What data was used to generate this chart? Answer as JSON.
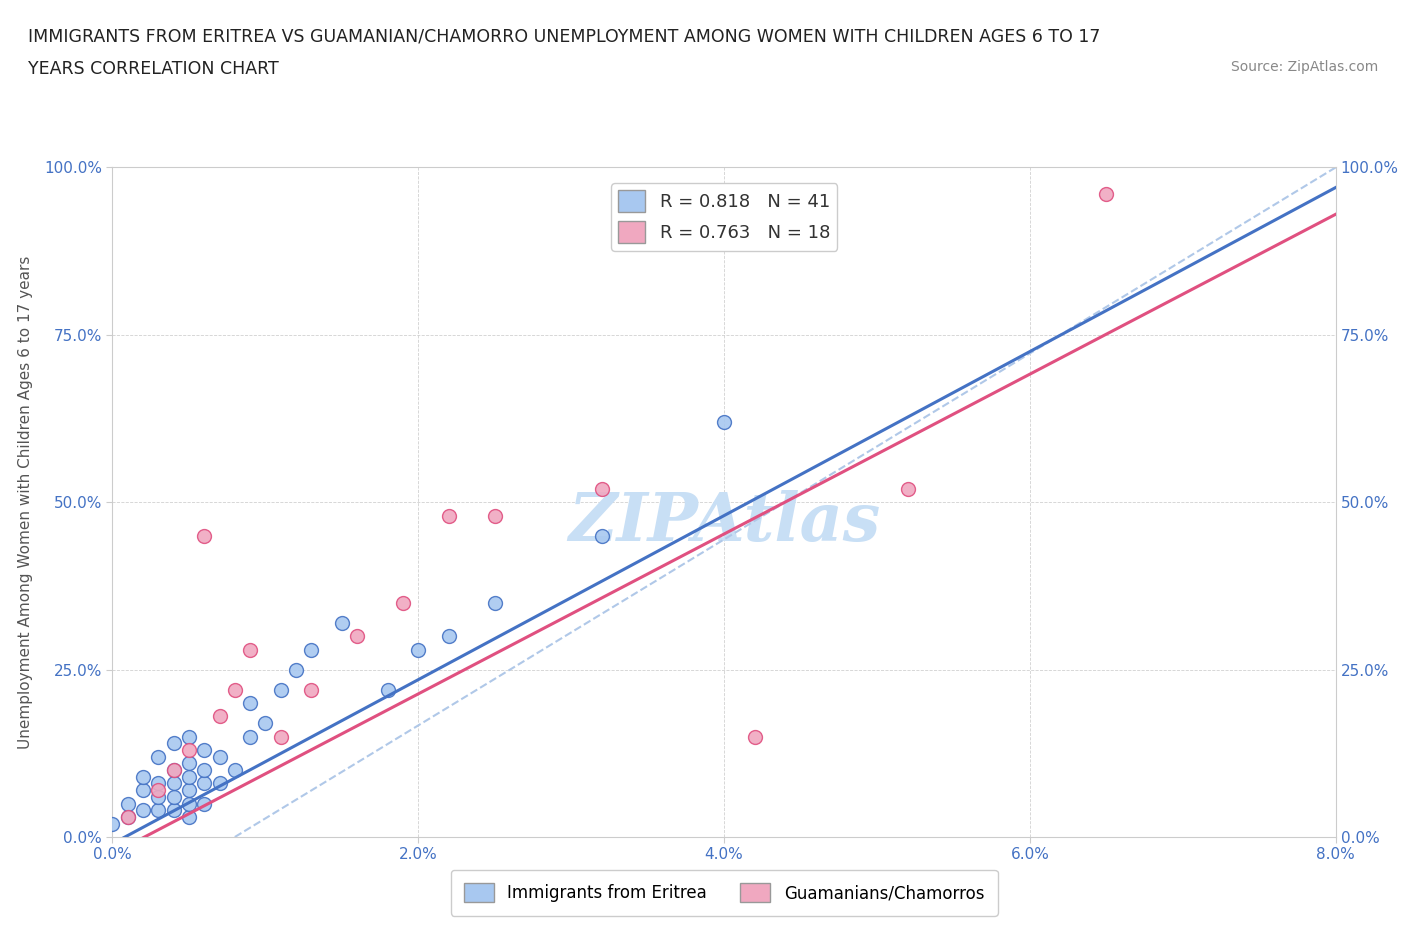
{
  "title_line1": "IMMIGRANTS FROM ERITREA VS GUAMANIAN/CHAMORRO UNEMPLOYMENT AMONG WOMEN WITH CHILDREN AGES 6 TO 17",
  "title_line2": "YEARS CORRELATION CHART",
  "source_text": "Source: ZipAtlas.com",
  "ylabel": "Unemployment Among Women with Children Ages 6 to 17 years",
  "xlim": [
    0.0,
    0.08
  ],
  "ylim": [
    0.0,
    1.0
  ],
  "xtick_labels": [
    "0.0%",
    "2.0%",
    "4.0%",
    "6.0%",
    "8.0%"
  ],
  "xtick_vals": [
    0.0,
    0.02,
    0.04,
    0.06,
    0.08
  ],
  "ytick_labels": [
    "0.0%",
    "25.0%",
    "50.0%",
    "75.0%",
    "100.0%"
  ],
  "ytick_vals": [
    0.0,
    0.25,
    0.5,
    0.75,
    1.0
  ],
  "r_eritrea": 0.818,
  "n_eritrea": 41,
  "r_guam": 0.763,
  "n_guam": 18,
  "color_eritrea": "#a8c8f0",
  "color_guam": "#f0a8c0",
  "color_eritrea_line": "#4472c4",
  "color_guam_line": "#e05080",
  "color_dashed": "#b0c8e8",
  "watermark": "ZIPAtlas",
  "watermark_color": "#c8dff5",
  "legend_label_eritrea": "Immigrants from Eritrea",
  "legend_label_guam": "Guamanians/Chamorros",
  "eritrea_trendline": [
    0.0,
    -0.01,
    0.08,
    0.97
  ],
  "guam_trendline": [
    0.0,
    -0.025,
    0.08,
    0.93
  ],
  "dashed_trendline": [
    0.008,
    0.0,
    0.08,
    1.0
  ],
  "eritrea_x": [
    0.0,
    0.001,
    0.001,
    0.002,
    0.002,
    0.002,
    0.003,
    0.003,
    0.003,
    0.003,
    0.004,
    0.004,
    0.004,
    0.004,
    0.004,
    0.005,
    0.005,
    0.005,
    0.005,
    0.005,
    0.005,
    0.006,
    0.006,
    0.006,
    0.006,
    0.007,
    0.007,
    0.008,
    0.009,
    0.009,
    0.01,
    0.011,
    0.012,
    0.013,
    0.015,
    0.018,
    0.02,
    0.022,
    0.025,
    0.032,
    0.04
  ],
  "eritrea_y": [
    0.02,
    0.03,
    0.05,
    0.04,
    0.07,
    0.09,
    0.04,
    0.06,
    0.08,
    0.12,
    0.04,
    0.06,
    0.08,
    0.1,
    0.14,
    0.03,
    0.05,
    0.07,
    0.09,
    0.11,
    0.15,
    0.05,
    0.08,
    0.1,
    0.13,
    0.08,
    0.12,
    0.1,
    0.15,
    0.2,
    0.17,
    0.22,
    0.25,
    0.28,
    0.32,
    0.22,
    0.28,
    0.3,
    0.35,
    0.45,
    0.62
  ],
  "guam_x": [
    0.001,
    0.003,
    0.004,
    0.005,
    0.006,
    0.007,
    0.008,
    0.009,
    0.011,
    0.013,
    0.016,
    0.019,
    0.022,
    0.025,
    0.032,
    0.042,
    0.052,
    0.065
  ],
  "guam_y": [
    0.03,
    0.07,
    0.1,
    0.13,
    0.45,
    0.18,
    0.22,
    0.28,
    0.15,
    0.22,
    0.3,
    0.35,
    0.48,
    0.48,
    0.52,
    0.15,
    0.52,
    0.96
  ]
}
